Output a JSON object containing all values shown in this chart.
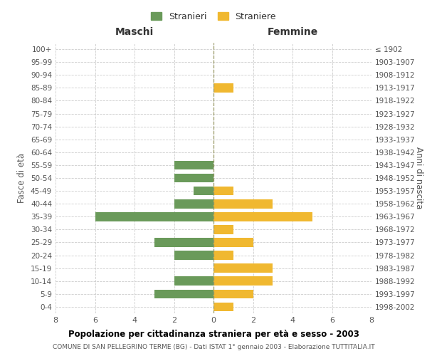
{
  "age_groups": [
    "100+",
    "95-99",
    "90-94",
    "85-89",
    "80-84",
    "75-79",
    "70-74",
    "65-69",
    "60-64",
    "55-59",
    "50-54",
    "45-49",
    "40-44",
    "35-39",
    "30-34",
    "25-29",
    "20-24",
    "15-19",
    "10-14",
    "5-9",
    "0-4"
  ],
  "birth_years": [
    "≤ 1902",
    "1903-1907",
    "1908-1912",
    "1913-1917",
    "1918-1922",
    "1923-1927",
    "1928-1932",
    "1933-1937",
    "1938-1942",
    "1943-1947",
    "1948-1952",
    "1953-1957",
    "1958-1962",
    "1963-1967",
    "1968-1972",
    "1973-1977",
    "1978-1982",
    "1983-1987",
    "1988-1992",
    "1993-1997",
    "1998-2002"
  ],
  "maschi": [
    0,
    0,
    0,
    0,
    0,
    0,
    0,
    0,
    0,
    2,
    2,
    1,
    2,
    6,
    0,
    3,
    2,
    0,
    2,
    3,
    0
  ],
  "femmine": [
    0,
    0,
    0,
    1,
    0,
    0,
    0,
    0,
    0,
    0,
    0,
    1,
    3,
    5,
    1,
    2,
    1,
    3,
    3,
    2,
    1
  ],
  "color_maschi": "#6a9a5a",
  "color_femmine": "#f0b830",
  "title": "Popolazione per cittadinanza straniera per età e sesso - 2003",
  "subtitle": "COMUNE DI SAN PELLEGRINO TERME (BG) - Dati ISTAT 1° gennaio 2003 - Elaborazione TUTTITALIA.IT",
  "ylabel_left": "Fasce di età",
  "ylabel_right": "Anni di nascita",
  "header_left": "Maschi",
  "header_right": "Femmine",
  "legend_maschi": "Stranieri",
  "legend_femmine": "Straniere",
  "xlim": 8,
  "background_color": "#ffffff",
  "grid_color": "#cccccc"
}
